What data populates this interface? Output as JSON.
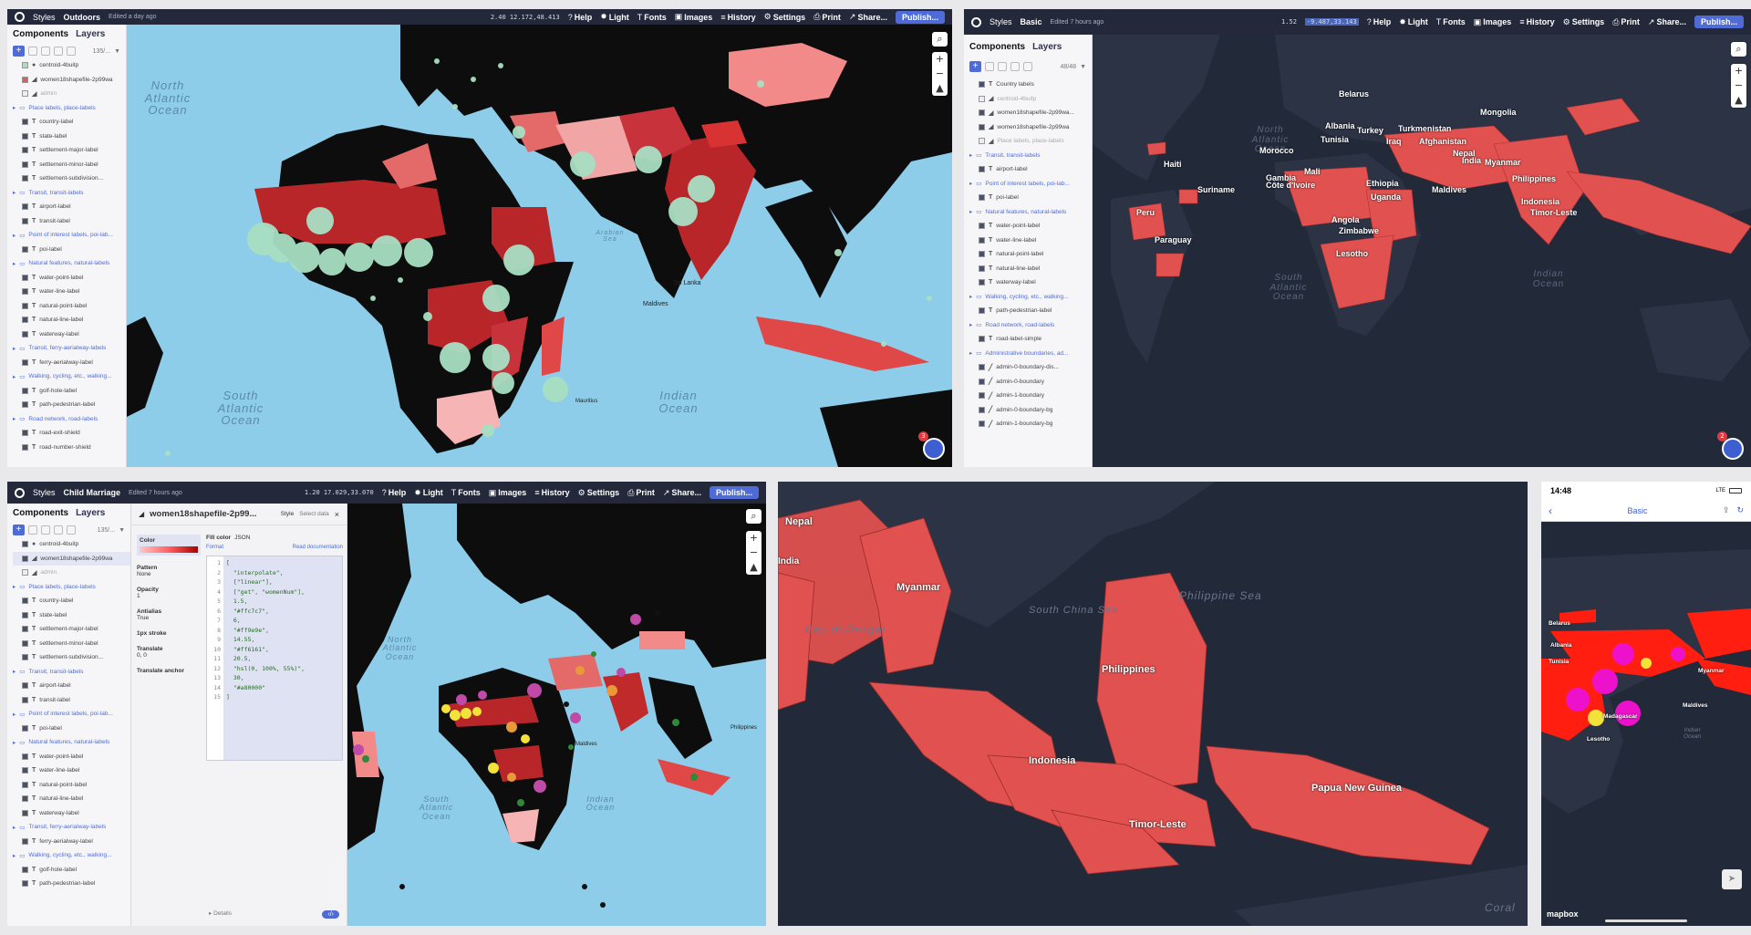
{
  "panel1": {
    "app": "Styles",
    "style_name": "Outdoors",
    "edited": "Edited a day ago",
    "coords": "2.40  12.172,48.413",
    "menu": [
      "Help",
      "Light",
      "Fonts",
      "Images",
      "History",
      "Settings",
      "Print",
      "Share..."
    ],
    "publish": "Publish...",
    "tabs": [
      "Components",
      "Layers"
    ],
    "count": "135/...",
    "layers": [
      {
        "label": "centroid-4buitp",
        "kind": "dot",
        "color": "#a8dfc3"
      },
      {
        "label": "women18shapefile-2p99wa",
        "kind": "fill",
        "color": "#e05a5a"
      },
      {
        "label": "admin",
        "kind": "faded"
      },
      {
        "label": "Place labels, place-labels",
        "kind": "group"
      },
      {
        "label": "country-label",
        "kind": "text"
      },
      {
        "label": "state-label",
        "kind": "text"
      },
      {
        "label": "settlement-major-label",
        "kind": "text"
      },
      {
        "label": "settlement-minor-label",
        "kind": "text"
      },
      {
        "label": "settlement-subdivision...",
        "kind": "text"
      },
      {
        "label": "Transit, transit-labels",
        "kind": "group"
      },
      {
        "label": "airport-label",
        "kind": "text"
      },
      {
        "label": "transit-label",
        "kind": "text"
      },
      {
        "label": "Point of interest labels, poi-lab...",
        "kind": "group"
      },
      {
        "label": "poi-label",
        "kind": "text"
      },
      {
        "label": "Natural features, natural-labels",
        "kind": "group"
      },
      {
        "label": "water-point-label",
        "kind": "text"
      },
      {
        "label": "water-line-label",
        "kind": "text"
      },
      {
        "label": "natural-point-label",
        "kind": "text"
      },
      {
        "label": "natural-line-label",
        "kind": "text"
      },
      {
        "label": "waterway-label",
        "kind": "text"
      },
      {
        "label": "Transit, ferry-aerialway-labels",
        "kind": "group"
      },
      {
        "label": "ferry-aerialway-label",
        "kind": "text"
      },
      {
        "label": "Walking, cycling, etc., walking...",
        "kind": "group"
      },
      {
        "label": "golf-hole-label",
        "kind": "text"
      },
      {
        "label": "path-pedestrian-label",
        "kind": "text"
      },
      {
        "label": "Road network, road-labels",
        "kind": "group"
      },
      {
        "label": "road-exit-shield",
        "kind": "text"
      },
      {
        "label": "road-number-shield",
        "kind": "text"
      }
    ],
    "map_labels": {
      "north_atlantic": "North\nAtlantic\nOcean",
      "south_atlantic": "South\nAtlantic\nOcean",
      "indian": "Indian\nOcean",
      "arabian": "Arabian\nSea",
      "maldives": "Maldives",
      "sri_lanka": "Sri Lanka",
      "mauritius": "Mauritius",
      "badge": "3"
    }
  },
  "panel2": {
    "app": "Styles",
    "style_name": "Basic",
    "edited": "Edited 7 hours ago",
    "zoom": "1.52",
    "coords": "-9.487,33.143",
    "menu": [
      "Help",
      "Light",
      "Fonts",
      "Images",
      "History",
      "Settings",
      "Print",
      "Share..."
    ],
    "publish": "Publish...",
    "tabs": [
      "Components",
      "Layers"
    ],
    "count": "48/48",
    "layers": [
      {
        "label": "Country labels",
        "kind": "text"
      },
      {
        "label": "centroid-4buitp",
        "kind": "faded"
      },
      {
        "label": "women18shapefile-2p99wa...",
        "kind": "fill"
      },
      {
        "label": "women18shapefile-2p99wa",
        "kind": "fill"
      },
      {
        "label": "Place labels, place-labels",
        "kind": "faded"
      },
      {
        "label": "Transit, transit-labels",
        "kind": "group"
      },
      {
        "label": "airport-label",
        "kind": "text"
      },
      {
        "label": "Point of interest labels, poi-lab...",
        "kind": "group"
      },
      {
        "label": "poi-label",
        "kind": "text"
      },
      {
        "label": "Natural features, natural-labels",
        "kind": "group"
      },
      {
        "label": "water-point-label",
        "kind": "text"
      },
      {
        "label": "water-line-label",
        "kind": "text"
      },
      {
        "label": "natural-point-label",
        "kind": "text"
      },
      {
        "label": "natural-line-label",
        "kind": "text"
      },
      {
        "label": "waterway-label",
        "kind": "text"
      },
      {
        "label": "Walking, cycling, etc., walking...",
        "kind": "group"
      },
      {
        "label": "path-pedestrian-label",
        "kind": "text"
      },
      {
        "label": "Road network, road-labels",
        "kind": "group"
      },
      {
        "label": "road-label-simple",
        "kind": "text"
      },
      {
        "label": "Administrative boundaries, ad...",
        "kind": "group"
      },
      {
        "label": "admin-0-boundary-dis...",
        "kind": "line"
      },
      {
        "label": "admin-0-boundary",
        "kind": "line"
      },
      {
        "label": "admin-1-boundary",
        "kind": "line"
      },
      {
        "label": "admin-0-boundary-bg",
        "kind": "line"
      },
      {
        "label": "admin-1-boundary-bg",
        "kind": "line"
      }
    ],
    "map_labels": {
      "north_atlantic": "North\nAtlantic\nOcean",
      "south_atlantic": "South\nAtlantic\nOcean",
      "indian": "Indian\nOcean",
      "badge": "2"
    },
    "countries": [
      "Belarus",
      "Mongolia",
      "Albania",
      "Turkey",
      "Turkmenistan",
      "Tunisia",
      "Iraq",
      "Afghanistan",
      "Nepal",
      "Haiti",
      "Morocco",
      "India",
      "Myanmar",
      "Mali",
      "Gambia",
      "Côte d'Ivoire",
      "Philippines",
      "Suriname",
      "Ethiopia",
      "Maldives",
      "Uganda",
      "Indonesia",
      "Timor-Leste",
      "Peru",
      "Angola",
      "Zimbabwe",
      "Paraguay",
      "Lesotho"
    ]
  },
  "panel3": {
    "app": "Styles",
    "style_name": "Child Marriage",
    "edited": "Edited 7 hours ago",
    "coords": "1.20  17.029,33.070",
    "menu": [
      "Help",
      "Light",
      "Fonts",
      "Images",
      "History",
      "Settings",
      "Print",
      "Share..."
    ],
    "publish": "Publish...",
    "tabs": [
      "Components",
      "Layers"
    ],
    "count": "135/...",
    "layers": [
      {
        "label": "centroid-4buitp",
        "kind": "dot"
      },
      {
        "label": "women18shapefile-2p99wa",
        "kind": "fill"
      },
      {
        "label": "admin",
        "kind": "faded"
      },
      {
        "label": "Place labels, place-labels",
        "kind": "group"
      },
      {
        "label": "country-label",
        "kind": "text"
      },
      {
        "label": "state-label",
        "kind": "text"
      },
      {
        "label": "settlement-major-label",
        "kind": "text"
      },
      {
        "label": "settlement-minor-label",
        "kind": "text"
      },
      {
        "label": "settlement-subdivision...",
        "kind": "text"
      },
      {
        "label": "Transit, transit-labels",
        "kind": "group"
      },
      {
        "label": "airport-label",
        "kind": "text"
      },
      {
        "label": "transit-label",
        "kind": "text"
      },
      {
        "label": "Point of interest labels, poi-lab...",
        "kind": "group"
      },
      {
        "label": "poi-label",
        "kind": "text"
      },
      {
        "label": "Natural features, natural-labels",
        "kind": "group"
      },
      {
        "label": "water-point-label",
        "kind": "text"
      },
      {
        "label": "water-line-label",
        "kind": "text"
      },
      {
        "label": "natural-point-label",
        "kind": "text"
      },
      {
        "label": "natural-line-label",
        "kind": "text"
      },
      {
        "label": "waterway-label",
        "kind": "text"
      },
      {
        "label": "Transit, ferry-aerialway-labels",
        "kind": "group"
      },
      {
        "label": "ferry-aerialway-label",
        "kind": "text"
      },
      {
        "label": "Walking, cycling, etc., walking...",
        "kind": "group"
      },
      {
        "label": "golf-hole-label",
        "kind": "text"
      },
      {
        "label": "path-pedestrian-label",
        "kind": "text"
      }
    ],
    "layer_editor": {
      "title": "women18shapefile-2p99...",
      "tab_style": "Style",
      "tab_select": "Select data",
      "props": [
        {
          "name": "Color",
          "value": ""
        },
        {
          "name": "Pattern",
          "value": "None"
        },
        {
          "name": "Opacity",
          "value": "1"
        },
        {
          "name": "Antialias",
          "value": "True"
        },
        {
          "name": "1px stroke",
          "value": ""
        },
        {
          "name": "Translate",
          "value": "0, 0"
        },
        {
          "name": "Translate anchor",
          "value": ""
        }
      ],
      "fill_color": "Fill color",
      "json": "JSON",
      "format": "Format",
      "read_docs": "Read documentation",
      "code_lines": [
        "[",
        "  \"interpolate\",",
        "  [\"linear\"],",
        "  [\"get\", \"womenNum\"],",
        "  1.5,",
        "  \"#ffc7c7\",",
        "  6,",
        "  \"#ff9e9e\",",
        "  14.55,",
        "  \"#ff6161\",",
        "  20.5,",
        "  \"hsl(0, 100%, 55%)\",",
        "  30,",
        "  \"#a80000\"",
        "]"
      ],
      "details": "Details"
    },
    "map_labels": {
      "north_atlantic": "North\nAtlantic\nOcean",
      "south_atlantic": "South\nAtlantic\nOcean",
      "indian": "Indian\nOcean",
      "maldives": "Maldives",
      "philippines": "Philippines"
    }
  },
  "panel4": {
    "labels": [
      "Nepal",
      "India",
      "Myanmar",
      "Bay of Bengal",
      "Philippine Sea",
      "South China Sea",
      "Philippines",
      "Indonesia",
      "Timor-Leste",
      "Papua New Guinea",
      "Coral"
    ]
  },
  "panel5": {
    "time": "14:48",
    "network": "LTE",
    "nav_title": "Basic",
    "labels": [
      "Belarus",
      "Albania",
      "Tunisia",
      "Myanmar",
      "Maldives",
      "Madagascar",
      "Lesotho",
      "Indian\nOcean"
    ],
    "attribution": "mapbox"
  },
  "colors": {
    "topbar": "#23283b",
    "accent": "#4f6cd6",
    "ocean_light": "#8ecdea",
    "ocean_dark": "#222a3a",
    "land_dark": "#2b3345",
    "extrusion": "#e0514f",
    "mint": "#a8dfc3"
  }
}
